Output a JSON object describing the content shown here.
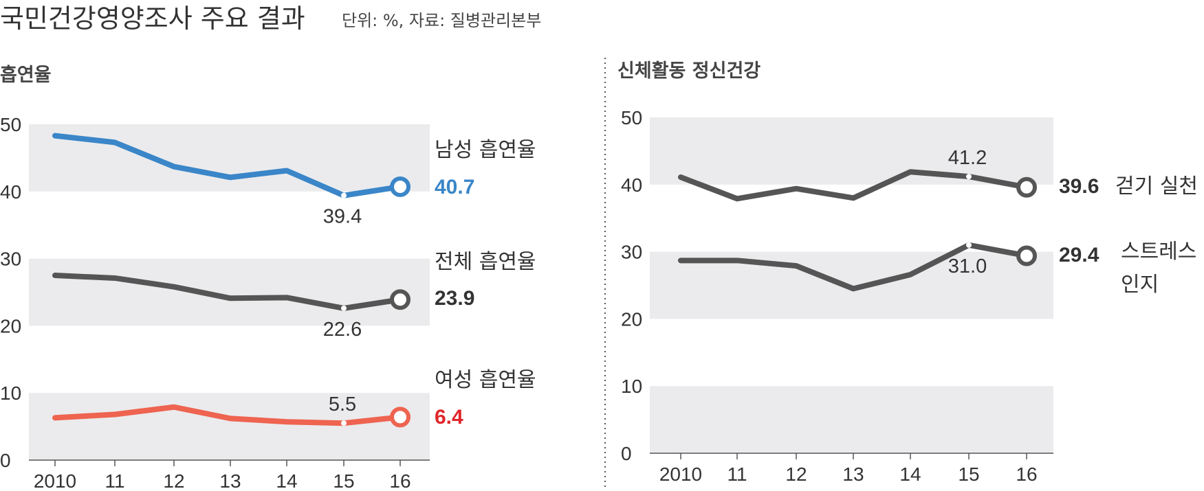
{
  "title": "국민건강영양조사 주요 결과",
  "subtitle": "단위: %, 자료: 질병관리본부",
  "colors": {
    "blue": "#3a86c8",
    "gray": "#555555",
    "red": "#ee6450",
    "band": "#ebebed",
    "red_text": "#e0262a"
  },
  "chart_data": [
    {
      "type": "line",
      "title": "흡연율",
      "categories": [
        "2010",
        "11",
        "12",
        "13",
        "14",
        "15",
        "16"
      ],
      "yticks": [
        "0",
        "10",
        "20",
        "30",
        "40",
        "50"
      ],
      "ylim": [
        0,
        50
      ],
      "series": [
        {
          "name": "남성 흡연율",
          "color": "#3a86c8",
          "value_color": "#3a86c8",
          "values": [
            48.3,
            47.3,
            43.7,
            42.1,
            43.1,
            39.4,
            40.7
          ],
          "end_label": "40.7",
          "annotation_index": 5,
          "annotation": "39.4",
          "annotation_pos": "below"
        },
        {
          "name": "전체 흡연율",
          "color": "#555555",
          "value_color": "#333333",
          "values": [
            27.5,
            27.1,
            25.8,
            24.1,
            24.2,
            22.6,
            23.9
          ],
          "end_label": "23.9",
          "annotation_index": 5,
          "annotation": "22.6",
          "annotation_pos": "below"
        },
        {
          "name": "여성 흡연율",
          "color": "#ee6450",
          "value_color": "#e0262a",
          "values": [
            6.3,
            6.8,
            7.9,
            6.2,
            5.7,
            5.5,
            6.4
          ],
          "end_label": "6.4",
          "annotation_index": 5,
          "annotation": "5.5",
          "annotation_pos": "above"
        }
      ]
    },
    {
      "type": "line",
      "title": "신체활동 정신건강",
      "categories": [
        "2010",
        "11",
        "12",
        "13",
        "14",
        "15",
        "16"
      ],
      "yticks": [
        "0",
        "10",
        "20",
        "30",
        "40",
        "50"
      ],
      "ylim": [
        0,
        50
      ],
      "series": [
        {
          "name": "걷기 실천",
          "color": "#555555",
          "value_color": "#333333",
          "values": [
            41.1,
            37.9,
            39.4,
            38.0,
            41.9,
            41.2,
            39.6
          ],
          "end_label": "39.6",
          "annotation_index": 5,
          "annotation": "41.2",
          "annotation_pos": "above"
        },
        {
          "name": "스트레스 인지",
          "name_lines": [
            "스트레스",
            "인지"
          ],
          "color": "#555555",
          "value_color": "#333333",
          "values": [
            28.7,
            28.7,
            27.9,
            24.5,
            26.6,
            31.0,
            29.4
          ],
          "end_label": "29.4",
          "annotation_index": 5,
          "annotation": "31.0",
          "annotation_pos": "below"
        }
      ]
    }
  ]
}
